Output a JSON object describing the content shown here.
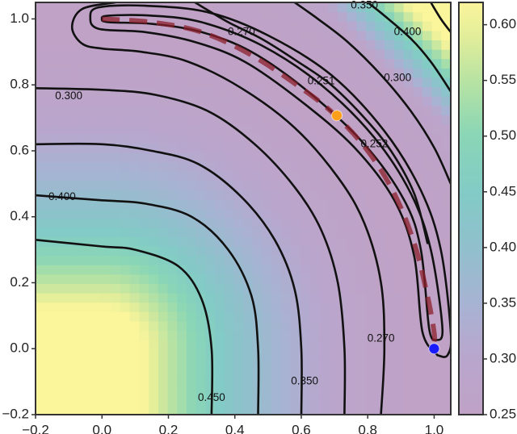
{
  "chart_data": {
    "type": "contour",
    "title": "",
    "xlabel": "",
    "ylabel": "",
    "xlim": [
      -0.2,
      1.05
    ],
    "ylim": [
      -0.2,
      1.05
    ],
    "x_ticks": [
      "−0.2",
      "0.0",
      "0.2",
      "0.4",
      "0.6",
      "0.8",
      "1.0"
    ],
    "x_tick_values": [
      -0.2,
      0.0,
      0.2,
      0.4,
      0.6,
      0.8,
      1.0
    ],
    "y_ticks": [
      "−0.2",
      "0.0",
      "0.2",
      "0.4",
      "0.6",
      "0.8",
      "1.0"
    ],
    "y_tick_values": [
      -0.2,
      0.0,
      0.2,
      0.4,
      0.6,
      0.8,
      1.0
    ],
    "grid": false,
    "colorbar": {
      "range": [
        0.25,
        0.62
      ],
      "ticks": [
        "0.25",
        "0.30",
        "0.35",
        "0.40",
        "0.45",
        "0.50",
        "0.55",
        "0.60"
      ],
      "tick_values": [
        0.25,
        0.3,
        0.35,
        0.4,
        0.45,
        0.5,
        0.55,
        0.6
      ],
      "colormap": "viridis",
      "alpha": 0.5
    },
    "contour_labels": [
      {
        "text": "0.300",
        "x": -0.1,
        "y": 0.765
      },
      {
        "text": "0.400",
        "x": -0.12,
        "y": 0.46
      },
      {
        "text": "0.450",
        "x": 0.33,
        "y": -0.15
      },
      {
        "text": "0.350",
        "x": 0.61,
        "y": -0.1
      },
      {
        "text": "0.270",
        "x": 0.84,
        "y": 0.03
      },
      {
        "text": "0.270",
        "x": 0.42,
        "y": 0.96
      },
      {
        "text": "0.350",
        "x": 0.79,
        "y": 1.04
      },
      {
        "text": "0.400",
        "x": 0.92,
        "y": 0.96
      },
      {
        "text": "0.300",
        "x": 0.89,
        "y": 0.82
      },
      {
        "text": "0.251",
        "x": 0.66,
        "y": 0.81
      },
      {
        "text": "0.252",
        "x": 0.82,
        "y": 0.62
      }
    ],
    "contours": [
      {
        "level": 0.25,
        "path": [
          [
            1.005,
            0.025
          ],
          [
            0.985,
            0.06
          ],
          [
            0.96,
            0.3
          ],
          [
            0.91,
            0.45
          ],
          [
            0.79,
            0.62
          ],
          [
            0.62,
            0.78
          ],
          [
            0.45,
            0.9
          ],
          [
            0.3,
            0.96
          ],
          [
            0.15,
            0.985
          ],
          [
            0.02,
            0.99
          ],
          [
            0.0,
            1.0
          ],
          [
            0.02,
            1.01
          ],
          [
            0.15,
            1.01
          ],
          [
            0.3,
            0.99
          ],
          [
            0.48,
            0.92
          ],
          [
            0.66,
            0.8
          ],
          [
            0.82,
            0.64
          ],
          [
            0.93,
            0.47
          ],
          [
            0.99,
            0.3
          ],
          [
            1.025,
            0.06
          ],
          [
            1.005,
            0.025
          ]
        ]
      },
      {
        "level": 0.252,
        "path": [
          [
            1.01,
            -0.02
          ],
          [
            0.965,
            0.05
          ],
          [
            0.94,
            0.28
          ],
          [
            0.88,
            0.45
          ],
          [
            0.76,
            0.61
          ],
          [
            0.6,
            0.75
          ],
          [
            0.43,
            0.87
          ],
          [
            0.28,
            0.93
          ],
          [
            0.13,
            0.96
          ],
          [
            -0.01,
            0.97
          ],
          [
            -0.035,
            1.005
          ],
          [
            -0.01,
            1.035
          ],
          [
            0.13,
            1.04
          ],
          [
            0.32,
            1.02
          ],
          [
            0.5,
            0.95
          ],
          [
            0.69,
            0.83
          ],
          [
            0.85,
            0.66
          ],
          [
            0.96,
            0.48
          ],
          [
            1.02,
            0.3
          ],
          [
            1.05,
            0.05
          ],
          [
            1.04,
            -0.02
          ],
          [
            1.01,
            -0.02
          ]
        ]
      },
      {
        "level": 0.27,
        "path": [
          [
            0.84,
            -0.2
          ],
          [
            0.85,
            0.0
          ],
          [
            0.84,
            0.2
          ],
          [
            0.79,
            0.38
          ],
          [
            0.71,
            0.52
          ],
          [
            0.58,
            0.67
          ],
          [
            0.42,
            0.79
          ],
          [
            0.26,
            0.87
          ],
          [
            0.12,
            0.9
          ],
          [
            0.0,
            0.91
          ],
          [
            -0.06,
            0.925
          ],
          [
            -0.09,
            0.975
          ],
          [
            -0.06,
            1.03
          ],
          [
            0.04,
            1.05
          ]
        ]
      },
      {
        "level": 0.3,
        "path": [
          [
            0.73,
            -0.2
          ],
          [
            0.73,
            0.0
          ],
          [
            0.71,
            0.2
          ],
          [
            0.66,
            0.36
          ],
          [
            0.58,
            0.49
          ],
          [
            0.46,
            0.62
          ],
          [
            0.32,
            0.72
          ],
          [
            0.16,
            0.77
          ],
          [
            0.0,
            0.785
          ],
          [
            -0.2,
            0.79
          ]
        ]
      },
      {
        "level": 0.35,
        "path": [
          [
            0.6,
            -0.2
          ],
          [
            0.6,
            0.0
          ],
          [
            0.58,
            0.18
          ],
          [
            0.52,
            0.33
          ],
          [
            0.42,
            0.46
          ],
          [
            0.29,
            0.56
          ],
          [
            0.15,
            0.6
          ],
          [
            0.0,
            0.62
          ],
          [
            -0.2,
            0.62
          ]
        ]
      },
      {
        "level": 0.4,
        "path": [
          [
            0.47,
            -0.2
          ],
          [
            0.47,
            0.0
          ],
          [
            0.45,
            0.16
          ],
          [
            0.38,
            0.3
          ],
          [
            0.27,
            0.4
          ],
          [
            0.13,
            0.44
          ],
          [
            0.0,
            0.45
          ],
          [
            -0.2,
            0.465
          ]
        ]
      },
      {
        "level": 0.45,
        "path": [
          [
            0.33,
            -0.2
          ],
          [
            0.33,
            0.0
          ],
          [
            0.3,
            0.15
          ],
          [
            0.23,
            0.25
          ],
          [
            0.1,
            0.3
          ],
          [
            0.0,
            0.31
          ],
          [
            -0.2,
            0.33
          ]
        ]
      },
      {
        "level": 0.3,
        "path": [
          [
            0.98,
            0.32
          ],
          [
            0.94,
            0.47
          ],
          [
            0.87,
            0.6
          ],
          [
            0.79,
            0.7
          ],
          [
            0.69,
            0.8
          ],
          [
            0.59,
            0.87
          ],
          [
            0.48,
            0.94
          ],
          [
            0.38,
            0.99
          ],
          [
            0.28,
            1.05
          ]
        ]
      },
      {
        "level": 0.35,
        "path": [
          [
            1.05,
            0.5
          ],
          [
            1.0,
            0.61
          ],
          [
            0.93,
            0.72
          ],
          [
            0.84,
            0.83
          ],
          [
            0.74,
            0.93
          ],
          [
            0.65,
            1.0
          ],
          [
            0.58,
            1.05
          ]
        ]
      },
      {
        "level": 0.4,
        "path": [
          [
            1.05,
            0.78
          ],
          [
            0.99,
            0.87
          ],
          [
            0.93,
            0.94
          ],
          [
            0.85,
            1.01
          ],
          [
            0.8,
            1.05
          ]
        ]
      },
      {
        "level": 0.55,
        "path": [
          [
            1.05,
            0.96
          ],
          [
            1.02,
            1.0
          ],
          [
            0.99,
            1.05
          ]
        ]
      }
    ],
    "series": [
      {
        "type": "dashed-path",
        "color": "#8c1f2c",
        "x": [
          0.0,
          0.15,
          0.3,
          0.45,
          0.6,
          0.7,
          0.8,
          0.88,
          0.94,
          0.98,
          1.0,
          1.0
        ],
        "y": [
          1.0,
          0.99,
          0.96,
          0.89,
          0.79,
          0.71,
          0.6,
          0.47,
          0.32,
          0.16,
          0.05,
          0.02
        ]
      }
    ],
    "points": [
      {
        "x": 0.707,
        "y": 0.707,
        "color": "#ff9f1a"
      },
      {
        "x": 1.0,
        "y": 0.0,
        "color": "#1a1aff"
      }
    ]
  }
}
